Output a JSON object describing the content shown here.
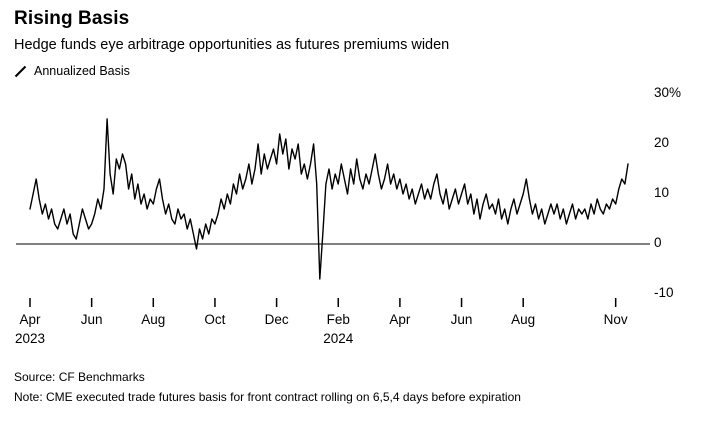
{
  "header": {
    "title": "Rising Basis",
    "subtitle": "Hedge funds eye arbitrage opportunities as futures premiums widen"
  },
  "legend": {
    "label": "Annualized Basis",
    "marker_color": "#000000"
  },
  "chart_data": {
    "type": "line",
    "title": "Rising Basis",
    "series_name": "Annualized Basis",
    "unit": "%",
    "line_color": "#000000",
    "grid": "zero-line-only",
    "legend_position": "top-left",
    "ylim": [
      -10,
      30
    ],
    "points_per_month": 10,
    "y_ticks": [
      {
        "value": 30,
        "label": "30%"
      },
      {
        "value": 20,
        "label": "20"
      },
      {
        "value": 10,
        "label": "10"
      },
      {
        "value": 0,
        "label": "0"
      },
      {
        "value": -10,
        "label": "-10"
      }
    ],
    "x_ticks": [
      {
        "index": 0,
        "label": "Apr",
        "year": "2023"
      },
      {
        "index": 20,
        "label": "Jun"
      },
      {
        "index": 40,
        "label": "Aug"
      },
      {
        "index": 60,
        "label": "Oct"
      },
      {
        "index": 80,
        "label": "Dec"
      },
      {
        "index": 100,
        "label": "Feb",
        "year": "2024"
      },
      {
        "index": 120,
        "label": "Apr"
      },
      {
        "index": 140,
        "label": "Jun"
      },
      {
        "index": 160,
        "label": "Aug"
      },
      {
        "index": 190,
        "label": "Nov"
      }
    ],
    "values": [
      7,
      10,
      13,
      9,
      6,
      8,
      5,
      7,
      4,
      3,
      5,
      7,
      4,
      6,
      2,
      1,
      4,
      7,
      5,
      3,
      4,
      6,
      9,
      7,
      11,
      25,
      14,
      10,
      17,
      15,
      18,
      16,
      11,
      14,
      9,
      12,
      8,
      10,
      7,
      9,
      8,
      11,
      13,
      9,
      6,
      8,
      5,
      4,
      7,
      5,
      6,
      3,
      5,
      2,
      -1,
      3,
      1,
      4,
      2,
      5,
      4,
      6,
      9,
      7,
      10,
      8,
      12,
      10,
      14,
      11,
      13,
      16,
      12,
      15,
      20,
      14,
      18,
      15,
      17,
      19,
      16,
      22,
      18,
      21,
      15,
      19,
      17,
      20,
      14,
      16,
      13,
      16,
      20,
      12,
      -7,
      2,
      12,
      15,
      11,
      14,
      12,
      16,
      13,
      10,
      15,
      12,
      17,
      13,
      11,
      14,
      12,
      15,
      18,
      14,
      11,
      13,
      16,
      12,
      14,
      11,
      13,
      10,
      12,
      9,
      11,
      8,
      10,
      12,
      9,
      11,
      9,
      12,
      14,
      10,
      8,
      11,
      7,
      9,
      11,
      8,
      10,
      12,
      8,
      10,
      6,
      9,
      5,
      8,
      10,
      7,
      8,
      6,
      9,
      5,
      7,
      4,
      7,
      9,
      6,
      8,
      10,
      13,
      9,
      6,
      8,
      5,
      7,
      4,
      6,
      8,
      6,
      8,
      5,
      7,
      4,
      6,
      8,
      5,
      7,
      6,
      7,
      5,
      8,
      6,
      9,
      7,
      6,
      8,
      7,
      9,
      8,
      11,
      13,
      12,
      16
    ]
  },
  "footer": {
    "source": "Source: CF Benchmarks",
    "note": "Note: CME executed trade futures basis for front contract rolling on 6,5,4 days before expiration"
  }
}
